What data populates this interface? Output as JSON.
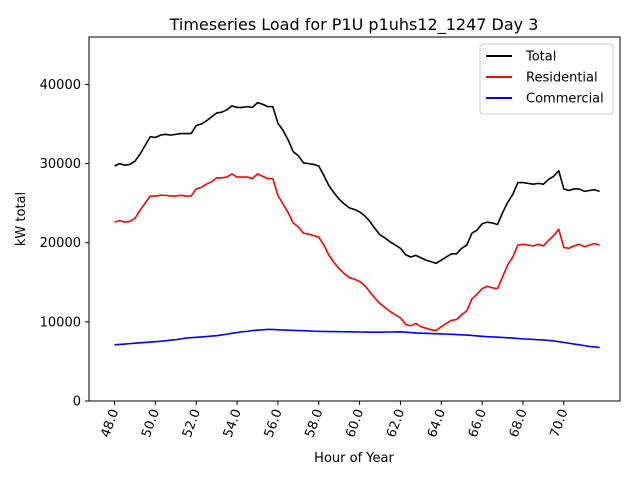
{
  "chart_data": {
    "type": "line",
    "title": "Timeseries Load for P1U p1uhs12_1247  Day 3",
    "xlabel": "Hour of Year",
    "ylabel": "kW total",
    "xlim": [
      46.75,
      72.75
    ],
    "ylim": [
      0,
      46000
    ],
    "x_ticks": [
      48,
      50,
      52,
      54,
      56,
      58,
      60,
      62,
      64,
      66,
      68,
      70
    ],
    "x_tick_labels": [
      "48.0",
      "50.0",
      "52.0",
      "54.0",
      "56.0",
      "58.0",
      "60.0",
      "62.0",
      "64.0",
      "66.0",
      "68.0",
      "70.0"
    ],
    "y_ticks": [
      0,
      10000,
      20000,
      30000,
      40000
    ],
    "y_tick_labels": [
      "0",
      "10000",
      "20000",
      "30000",
      "40000"
    ],
    "legend_position": "top-right",
    "x": [
      48.0,
      48.25,
      48.5,
      48.75,
      49.0,
      49.25,
      49.5,
      49.75,
      50.0,
      50.25,
      50.5,
      50.75,
      51.0,
      51.25,
      51.5,
      51.75,
      52.0,
      52.25,
      52.5,
      52.75,
      53.0,
      53.25,
      53.5,
      53.75,
      54.0,
      54.25,
      54.5,
      54.75,
      55.0,
      55.25,
      55.5,
      55.75,
      56.0,
      56.25,
      56.5,
      56.75,
      57.0,
      57.25,
      57.5,
      57.75,
      58.0,
      58.25,
      58.5,
      58.75,
      59.0,
      59.25,
      59.5,
      59.75,
      60.0,
      60.25,
      60.5,
      60.75,
      61.0,
      61.25,
      61.5,
      61.75,
      62.0,
      62.25,
      62.5,
      62.75,
      63.0,
      63.25,
      63.5,
      63.75,
      64.0,
      64.25,
      64.5,
      64.75,
      65.0,
      65.25,
      65.5,
      65.75,
      66.0,
      66.25,
      66.5,
      66.75,
      67.0,
      67.25,
      67.5,
      67.75,
      68.0,
      68.25,
      68.5,
      68.75,
      69.0,
      69.25,
      69.5,
      69.75,
      70.0,
      70.25,
      70.5,
      70.75,
      71.0,
      71.25,
      71.5,
      71.75
    ],
    "series": [
      {
        "name": "Total",
        "color": "#000000",
        "values": [
          29700,
          30000,
          29800,
          29900,
          30300,
          31200,
          32300,
          33400,
          33300,
          33600,
          33700,
          33600,
          33700,
          33800,
          33800,
          33800,
          34800,
          35000,
          35400,
          35900,
          36400,
          36500,
          36800,
          37300,
          37100,
          37100,
          37200,
          37100,
          37700,
          37500,
          37200,
          37200,
          35100,
          34200,
          33000,
          31500,
          31000,
          30100,
          30000,
          29900,
          29700,
          28500,
          27200,
          26300,
          25500,
          24900,
          24400,
          24200,
          23900,
          23400,
          22700,
          21800,
          21000,
          20600,
          20100,
          19700,
          19300,
          18500,
          18200,
          18400,
          18100,
          17800,
          17600,
          17400,
          17800,
          18200,
          18600,
          18600,
          19300,
          19700,
          21200,
          21600,
          22400,
          22600,
          22500,
          22300,
          23800,
          25100,
          26100,
          27600,
          27600,
          27500,
          27400,
          27500,
          27400,
          28000,
          28400,
          29100,
          26800,
          26600,
          26800,
          26800,
          26500,
          26600,
          26700,
          26500
        ]
      },
      {
        "name": "Residential",
        "color": "#ff0000",
        "values": [
          22600,
          22800,
          22600,
          22700,
          23100,
          24100,
          25000,
          25900,
          25900,
          26000,
          26000,
          25900,
          25900,
          26000,
          25900,
          25900,
          26800,
          27000,
          27400,
          27700,
          28200,
          28200,
          28300,
          28700,
          28300,
          28300,
          28300,
          28100,
          28700,
          28400,
          28100,
          28100,
          26000,
          24900,
          23800,
          22500,
          22000,
          21200,
          21100,
          20900,
          20700,
          19700,
          18400,
          17500,
          16700,
          16100,
          15600,
          15400,
          15100,
          14600,
          13800,
          13000,
          12300,
          11800,
          11300,
          10900,
          10500,
          9700,
          9500,
          9800,
          9400,
          9200,
          9000,
          8900,
          9400,
          9800,
          10200,
          10300,
          10900,
          11400,
          12900,
          13500,
          14200,
          14500,
          14300,
          14200,
          15700,
          17200,
          18200,
          19700,
          19800,
          19700,
          19600,
          19800,
          19600,
          20300,
          20900,
          21700,
          19400,
          19300,
          19600,
          19800,
          19500,
          19700,
          19900,
          19700
        ]
      },
      {
        "name": "Commercial",
        "color": "#0000ff",
        "values": [
          7100,
          7150,
          7200,
          7250,
          7300,
          7350,
          7400,
          7450,
          7500,
          7550,
          7600,
          7700,
          7750,
          7850,
          7950,
          8000,
          8050,
          8100,
          8150,
          8200,
          8250,
          8350,
          8450,
          8550,
          8650,
          8750,
          8800,
          8900,
          8950,
          9000,
          9050,
          9050,
          9000,
          8980,
          8950,
          8920,
          8900,
          8880,
          8850,
          8830,
          8800,
          8790,
          8780,
          8770,
          8760,
          8750,
          8740,
          8730,
          8720,
          8710,
          8700,
          8700,
          8700,
          8710,
          8720,
          8730,
          8740,
          8700,
          8650,
          8600,
          8570,
          8550,
          8520,
          8500,
          8480,
          8450,
          8430,
          8400,
          8370,
          8330,
          8280,
          8220,
          8170,
          8130,
          8100,
          8070,
          8030,
          7990,
          7950,
          7900,
          7850,
          7820,
          7780,
          7740,
          7700,
          7650,
          7600,
          7500,
          7400,
          7300,
          7200,
          7100,
          7000,
          6900,
          6850,
          6750
        ]
      }
    ]
  }
}
